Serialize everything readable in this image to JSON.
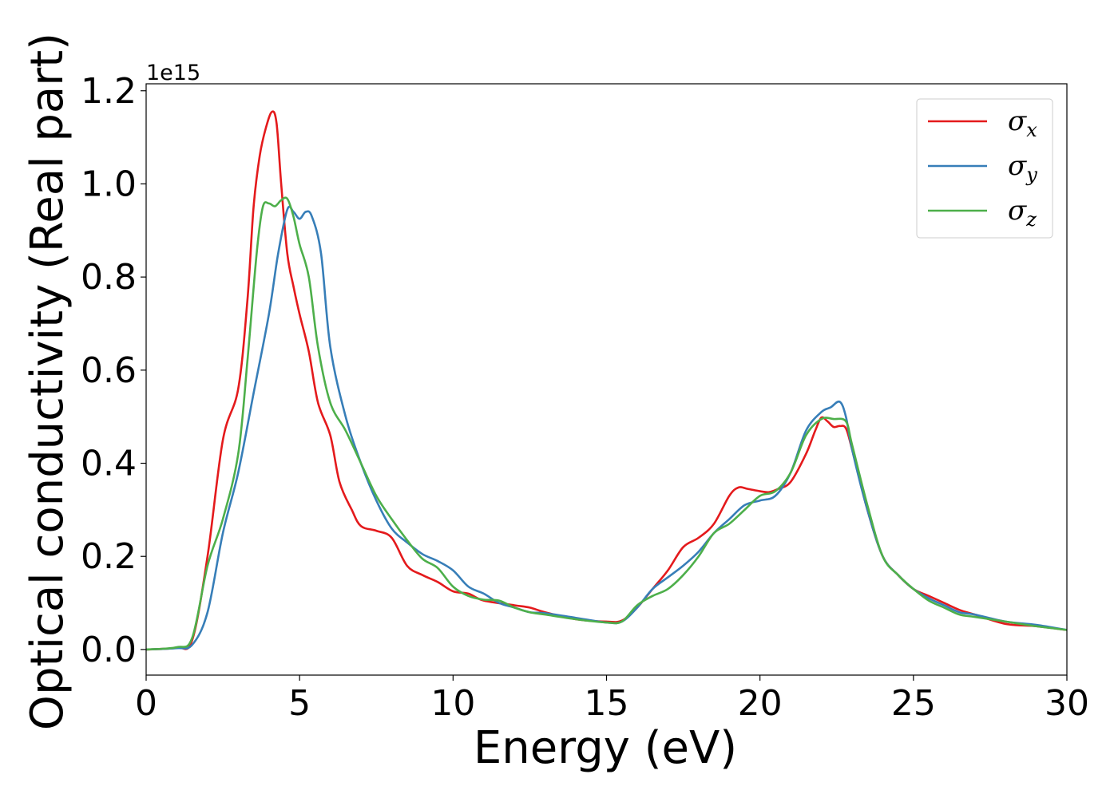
{
  "chart_data": {
    "type": "line",
    "title": "",
    "xlabel": "Energy (eV)",
    "ylabel": "Optical conductivity (Real part)",
    "y_offset_label": "1e15",
    "xlim": [
      0,
      30
    ],
    "ylim": [
      -0.055,
      1.215
    ],
    "x_ticks": [
      0,
      5,
      10,
      15,
      20,
      25,
      30
    ],
    "x_tick_labels": [
      "0",
      "5",
      "10",
      "15",
      "20",
      "25",
      "30"
    ],
    "y_ticks": [
      0.0,
      0.2,
      0.4,
      0.6,
      0.8,
      1.0,
      1.2
    ],
    "y_tick_labels": [
      "0.0",
      "0.2",
      "0.4",
      "0.6",
      "0.8",
      "1.0",
      "1.2"
    ],
    "grid": false,
    "legend_position": "top-right",
    "series": [
      {
        "symbol": "σ",
        "subscript": "x",
        "color": "#e41a1c",
        "points": [
          [
            0,
            0
          ],
          [
            1.0,
            0.004
          ],
          [
            1.5,
            0.02
          ],
          [
            2.0,
            0.2
          ],
          [
            2.5,
            0.45
          ],
          [
            3.0,
            0.56
          ],
          [
            3.3,
            0.75
          ],
          [
            3.5,
            0.95
          ],
          [
            3.7,
            1.06
          ],
          [
            3.9,
            1.12
          ],
          [
            4.1,
            1.155
          ],
          [
            4.25,
            1.13
          ],
          [
            4.4,
            1.0
          ],
          [
            4.6,
            0.85
          ],
          [
            4.8,
            0.78
          ],
          [
            5.0,
            0.72
          ],
          [
            5.3,
            0.64
          ],
          [
            5.6,
            0.53
          ],
          [
            6.0,
            0.46
          ],
          [
            6.3,
            0.36
          ],
          [
            6.7,
            0.3
          ],
          [
            7.0,
            0.265
          ],
          [
            7.5,
            0.255
          ],
          [
            8.0,
            0.24
          ],
          [
            8.5,
            0.18
          ],
          [
            9.0,
            0.16
          ],
          [
            9.5,
            0.145
          ],
          [
            10.0,
            0.125
          ],
          [
            10.5,
            0.12
          ],
          [
            11.0,
            0.105
          ],
          [
            12.0,
            0.095
          ],
          [
            12.5,
            0.09
          ],
          [
            13.0,
            0.08
          ],
          [
            14.0,
            0.065
          ],
          [
            15.0,
            0.06
          ],
          [
            15.5,
            0.062
          ],
          [
            16.0,
            0.09
          ],
          [
            16.5,
            0.13
          ],
          [
            17.0,
            0.17
          ],
          [
            17.5,
            0.22
          ],
          [
            18.0,
            0.24
          ],
          [
            18.5,
            0.27
          ],
          [
            19.0,
            0.33
          ],
          [
            19.3,
            0.348
          ],
          [
            19.6,
            0.345
          ],
          [
            20.0,
            0.34
          ],
          [
            20.3,
            0.338
          ],
          [
            20.6,
            0.345
          ],
          [
            21.0,
            0.36
          ],
          [
            21.5,
            0.42
          ],
          [
            21.8,
            0.47
          ],
          [
            22.0,
            0.498
          ],
          [
            22.2,
            0.49
          ],
          [
            22.4,
            0.478
          ],
          [
            22.6,
            0.48
          ],
          [
            22.8,
            0.475
          ],
          [
            23.0,
            0.43
          ],
          [
            23.5,
            0.3
          ],
          [
            24.0,
            0.2
          ],
          [
            24.5,
            0.16
          ],
          [
            25.0,
            0.13
          ],
          [
            25.5,
            0.115
          ],
          [
            26.0,
            0.1
          ],
          [
            26.5,
            0.085
          ],
          [
            27.0,
            0.075
          ],
          [
            28.0,
            0.055
          ],
          [
            29.0,
            0.05
          ],
          [
            30.0,
            0.042
          ]
        ]
      },
      {
        "symbol": "σ",
        "subscript": "y",
        "color": "#377eb8",
        "points": [
          [
            0,
            0
          ],
          [
            1.0,
            0.003
          ],
          [
            1.5,
            0.01
          ],
          [
            2.0,
            0.08
          ],
          [
            2.5,
            0.25
          ],
          [
            3.0,
            0.38
          ],
          [
            3.5,
            0.55
          ],
          [
            4.0,
            0.72
          ],
          [
            4.3,
            0.85
          ],
          [
            4.6,
            0.945
          ],
          [
            4.8,
            0.94
          ],
          [
            5.0,
            0.925
          ],
          [
            5.2,
            0.94
          ],
          [
            5.4,
            0.93
          ],
          [
            5.7,
            0.85
          ],
          [
            6.0,
            0.65
          ],
          [
            6.5,
            0.5
          ],
          [
            7.0,
            0.4
          ],
          [
            7.5,
            0.32
          ],
          [
            8.0,
            0.26
          ],
          [
            8.5,
            0.23
          ],
          [
            9.0,
            0.205
          ],
          [
            9.5,
            0.19
          ],
          [
            10.0,
            0.17
          ],
          [
            10.5,
            0.135
          ],
          [
            11.0,
            0.12
          ],
          [
            11.5,
            0.1
          ],
          [
            12.0,
            0.09
          ],
          [
            12.5,
            0.08
          ],
          [
            13.0,
            0.078
          ],
          [
            14.0,
            0.068
          ],
          [
            15.0,
            0.058
          ],
          [
            15.5,
            0.06
          ],
          [
            16.0,
            0.09
          ],
          [
            16.5,
            0.13
          ],
          [
            17.0,
            0.155
          ],
          [
            17.5,
            0.18
          ],
          [
            18.0,
            0.21
          ],
          [
            18.5,
            0.25
          ],
          [
            19.0,
            0.28
          ],
          [
            19.5,
            0.31
          ],
          [
            20.0,
            0.32
          ],
          [
            20.5,
            0.33
          ],
          [
            21.0,
            0.38
          ],
          [
            21.5,
            0.47
          ],
          [
            22.0,
            0.51
          ],
          [
            22.3,
            0.52
          ],
          [
            22.6,
            0.532
          ],
          [
            22.8,
            0.5
          ],
          [
            23.0,
            0.43
          ],
          [
            23.5,
            0.3
          ],
          [
            24.0,
            0.2
          ],
          [
            24.5,
            0.16
          ],
          [
            25.0,
            0.13
          ],
          [
            25.5,
            0.11
          ],
          [
            26.0,
            0.095
          ],
          [
            26.5,
            0.08
          ],
          [
            27.0,
            0.075
          ],
          [
            28.0,
            0.06
          ],
          [
            29.0,
            0.053
          ],
          [
            30.0,
            0.042
          ]
        ]
      },
      {
        "symbol": "σ",
        "subscript": "z",
        "color": "#4daf4a",
        "points": [
          [
            0,
            0
          ],
          [
            1.0,
            0.005
          ],
          [
            1.5,
            0.025
          ],
          [
            2.0,
            0.18
          ],
          [
            2.5,
            0.28
          ],
          [
            3.0,
            0.42
          ],
          [
            3.3,
            0.62
          ],
          [
            3.6,
            0.85
          ],
          [
            3.8,
            0.95
          ],
          [
            4.0,
            0.958
          ],
          [
            4.2,
            0.952
          ],
          [
            4.4,
            0.965
          ],
          [
            4.6,
            0.968
          ],
          [
            4.8,
            0.93
          ],
          [
            5.0,
            0.87
          ],
          [
            5.3,
            0.8
          ],
          [
            5.6,
            0.65
          ],
          [
            6.0,
            0.53
          ],
          [
            6.5,
            0.47
          ],
          [
            7.0,
            0.4
          ],
          [
            7.5,
            0.33
          ],
          [
            8.0,
            0.28
          ],
          [
            8.5,
            0.235
          ],
          [
            9.0,
            0.195
          ],
          [
            9.5,
            0.175
          ],
          [
            10.0,
            0.135
          ],
          [
            10.5,
            0.115
          ],
          [
            11.0,
            0.107
          ],
          [
            11.5,
            0.105
          ],
          [
            12.0,
            0.09
          ],
          [
            12.5,
            0.08
          ],
          [
            13.0,
            0.075
          ],
          [
            14.0,
            0.065
          ],
          [
            15.0,
            0.058
          ],
          [
            15.5,
            0.06
          ],
          [
            16.0,
            0.095
          ],
          [
            16.5,
            0.115
          ],
          [
            17.0,
            0.13
          ],
          [
            17.5,
            0.16
          ],
          [
            18.0,
            0.2
          ],
          [
            18.5,
            0.25
          ],
          [
            19.0,
            0.27
          ],
          [
            19.5,
            0.3
          ],
          [
            20.0,
            0.33
          ],
          [
            20.5,
            0.34
          ],
          [
            21.0,
            0.38
          ],
          [
            21.5,
            0.46
          ],
          [
            22.0,
            0.495
          ],
          [
            22.4,
            0.495
          ],
          [
            22.8,
            0.49
          ],
          [
            23.0,
            0.44
          ],
          [
            23.5,
            0.31
          ],
          [
            24.0,
            0.2
          ],
          [
            24.5,
            0.16
          ],
          [
            25.0,
            0.13
          ],
          [
            25.5,
            0.105
          ],
          [
            26.0,
            0.09
          ],
          [
            26.5,
            0.075
          ],
          [
            27.0,
            0.07
          ],
          [
            28.0,
            0.06
          ],
          [
            29.0,
            0.05
          ],
          [
            30.0,
            0.042
          ]
        ]
      }
    ]
  }
}
